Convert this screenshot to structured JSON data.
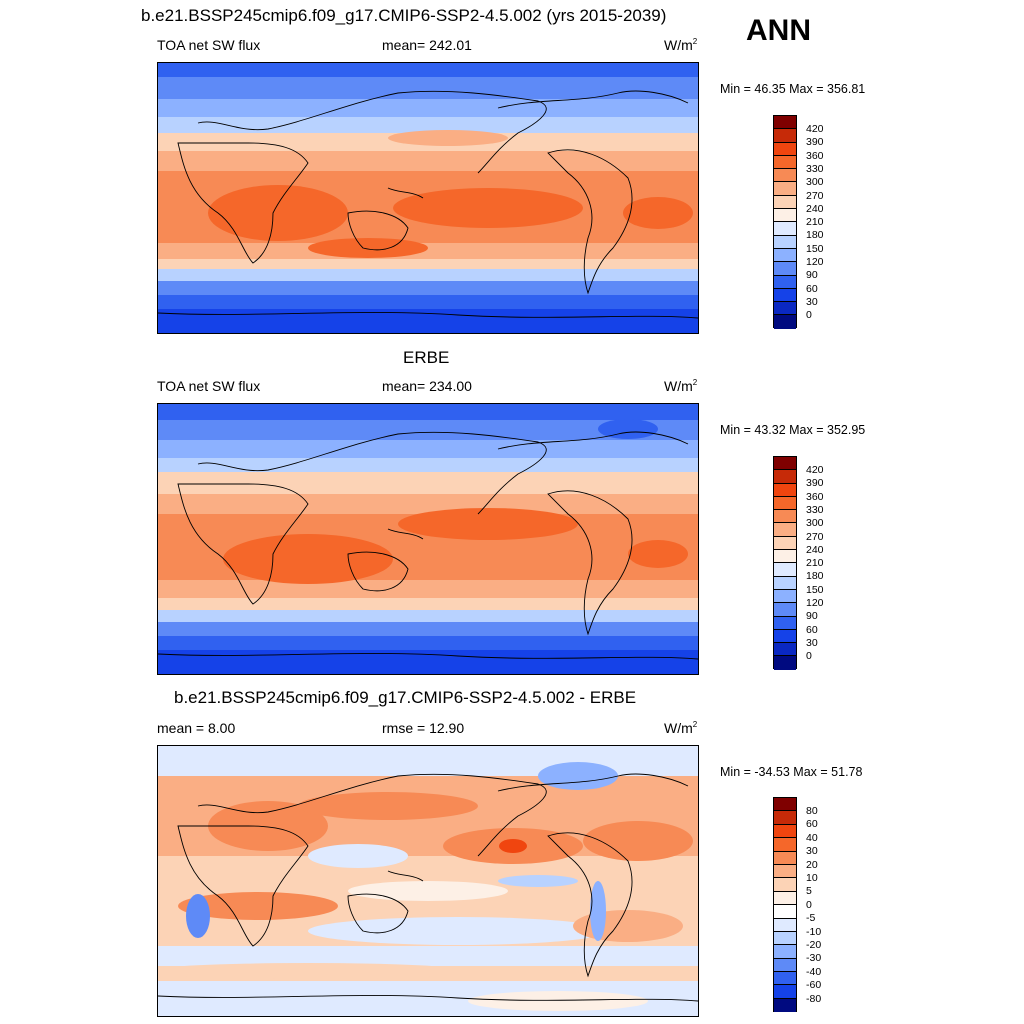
{
  "header": {
    "main_title": "b.e21.BSSP245cmip6.f09_g17.CMIP6-SSP2-4.5.002 (yrs 2015-2039)",
    "season": "ANN"
  },
  "panels": [
    {
      "title": "",
      "left_label": "TOA net SW flux",
      "center_label": "mean= 242.01",
      "units": "W/m",
      "units_sup": "2",
      "minmax": "Min =  46.35 Max = 356.81",
      "colorbar_labels": [
        "420",
        "390",
        "360",
        "330",
        "300",
        "270",
        "240",
        "210",
        "180",
        "150",
        "120",
        "90",
        "60",
        "30",
        "0"
      ]
    },
    {
      "title": "ERBE",
      "left_label": "TOA net SW flux",
      "center_label": "mean= 234.00",
      "units": "W/m",
      "units_sup": "2",
      "minmax": "Min =  43.32 Max = 352.95",
      "colorbar_labels": [
        "420",
        "390",
        "360",
        "330",
        "300",
        "270",
        "240",
        "210",
        "180",
        "150",
        "120",
        "90",
        "60",
        "30",
        "0"
      ]
    },
    {
      "title": "b.e21.BSSP245cmip6.f09_g17.CMIP6-SSP2-4.5.002 - ERBE",
      "left_label": "mean =   8.00",
      "center_label": "rmse =  12.90",
      "units": "W/m",
      "units_sup": "2",
      "minmax": "Min = -34.53 Max =  51.78",
      "colorbar_labels": [
        "80",
        "60",
        "40",
        "30",
        "20",
        "10",
        "5",
        "0",
        "-5",
        "-10",
        "-20",
        "-30",
        "-40",
        "-60",
        "-80"
      ]
    }
  ],
  "colors": {
    "abs_scale": [
      "#7f0000",
      "#c62a08",
      "#f0450f",
      "#f5672a",
      "#f78a55",
      "#faae84",
      "#fcd3b6",
      "#fdf0e6",
      "#dfeaff",
      "#b8d2ff",
      "#8cb1ff",
      "#5e8af7",
      "#3061f0",
      "#1542e8",
      "#0a28c2",
      "#000a80"
    ],
    "diff_scale": [
      "#7f0000",
      "#c62a08",
      "#f0450f",
      "#f5672a",
      "#f78a55",
      "#faae84",
      "#fcd3b6",
      "#fdf0e6",
      "#ffffff",
      "#dfeaff",
      "#b8d2ff",
      "#8cb1ff",
      "#5e8af7",
      "#3061f0",
      "#1542e8",
      "#000a80"
    ]
  }
}
